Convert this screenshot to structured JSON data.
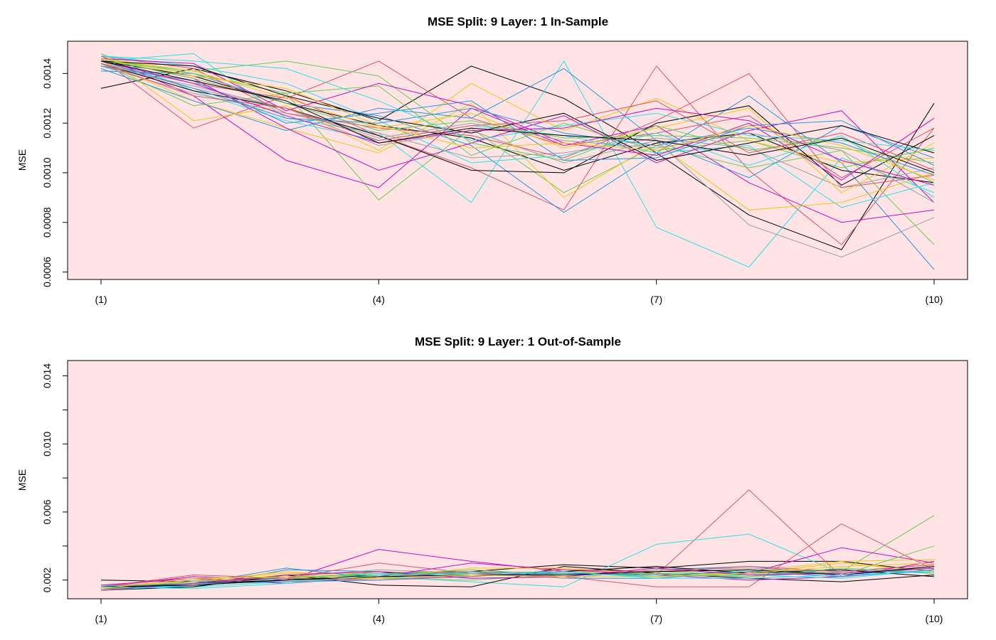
{
  "chart_data": [
    {
      "type": "line",
      "title": "MSE Split: 9 Layer: 1 In-Sample",
      "xlabel": "",
      "ylabel": "MSE",
      "x_tick_labels": [
        "(1)",
        "(4)",
        "(7)",
        "(10)"
      ],
      "y_ticks": [
        "0.0006",
        "0.0008",
        "0.0010",
        "0.0012",
        "0.0014"
      ],
      "ylim": [
        0.00057,
        0.00153
      ],
      "background_color": "#ffe3e5",
      "grid": false,
      "series": [
        {
          "color": "#000000",
          "values": [
            0.00134,
            0.00142,
            0.00133,
            0.00121,
            0.00143,
            0.0013,
            0.00108,
            0.00083,
            0.00069,
            0.00128
          ]
        },
        {
          "color": "#df536b",
          "values": [
            0.00146,
            0.00118,
            0.00131,
            0.00115,
            0.00102,
            0.00085,
            0.00143,
            0.00101,
            0.00071,
            0.00118
          ]
        },
        {
          "color": "#61d04f",
          "values": [
            0.00144,
            0.00127,
            0.00132,
            0.00089,
            0.00118,
            0.00092,
            0.00111,
            0.00102,
            0.00109,
            0.00071
          ]
        },
        {
          "color": "#2297e6",
          "values": [
            0.00141,
            0.0014,
            0.00128,
            0.00123,
            0.00111,
            0.00084,
            0.00108,
            0.00131,
            0.00104,
            0.00061
          ]
        },
        {
          "color": "#28e2e5",
          "values": [
            0.00145,
            0.00148,
            0.00122,
            0.00116,
            0.00088,
            0.00145,
            0.00078,
            0.00062,
            0.00106,
            0.00092
          ]
        },
        {
          "color": "#cd0bbc",
          "values": [
            0.00147,
            0.00131,
            0.00105,
            0.00094,
            0.00126,
            0.00111,
            0.00119,
            0.00096,
            0.0008,
            0.00085
          ]
        },
        {
          "color": "#f5c710",
          "values": [
            0.00145,
            0.00129,
            0.00118,
            0.00108,
            0.00128,
            0.0009,
            0.00112,
            0.00085,
            0.00088,
            0.001
          ]
        },
        {
          "color": "#9e9e9e",
          "values": [
            0.00143,
            0.00135,
            0.00126,
            0.00111,
            0.00117,
            0.00104,
            0.00113,
            0.00079,
            0.00066,
            0.00082
          ]
        },
        {
          "color": "#000000",
          "values": [
            0.00145,
            0.00139,
            0.00128,
            0.00119,
            0.00114,
            0.00101,
            0.00112,
            0.00116,
            0.00101,
            0.00096
          ]
        },
        {
          "color": "#df536b",
          "values": [
            0.00144,
            0.00136,
            0.0013,
            0.00145,
            0.00122,
            0.00111,
            0.00116,
            0.00123,
            0.00098,
            0.00118
          ]
        },
        {
          "color": "#61d04f",
          "values": [
            0.00146,
            0.0014,
            0.00132,
            0.00135,
            0.00107,
            0.0012,
            0.00109,
            0.00113,
            0.00102,
            0.0011
          ]
        },
        {
          "color": "#2297e6",
          "values": [
            0.00142,
            0.00129,
            0.00117,
            0.00126,
            0.00122,
            0.00142,
            0.00113,
            0.00098,
            0.00119,
            0.00106
          ]
        },
        {
          "color": "#28e2e5",
          "values": [
            0.00148,
            0.00133,
            0.00121,
            0.00113,
            0.00119,
            0.00115,
            0.00108,
            0.00111,
            0.00086,
            0.00096
          ]
        },
        {
          "color": "#cd0bbc",
          "values": [
            0.00146,
            0.00138,
            0.00118,
            0.00101,
            0.00112,
            0.00123,
            0.00104,
            0.00117,
            0.00125,
            0.00088
          ]
        },
        {
          "color": "#f5c710",
          "values": [
            0.00148,
            0.00121,
            0.00127,
            0.00109,
            0.00136,
            0.00117,
            0.0013,
            0.00113,
            0.00104,
            0.00106
          ]
        },
        {
          "color": "#9e9e9e",
          "values": [
            0.00143,
            0.00132,
            0.00124,
            0.00116,
            0.00106,
            0.00108,
            0.00114,
            0.0011,
            0.00094,
            0.00102
          ]
        },
        {
          "color": "#000000",
          "values": [
            0.00144,
            0.00133,
            0.00126,
            0.00115,
            0.00101,
            0.001,
            0.0012,
            0.00127,
            0.00095,
            0.00115
          ]
        },
        {
          "color": "#df536b",
          "values": [
            0.00147,
            0.00142,
            0.00124,
            0.00118,
            0.00115,
            0.00106,
            0.00121,
            0.0014,
            0.00094,
            0.00099
          ]
        },
        {
          "color": "#61d04f",
          "values": [
            0.00145,
            0.00141,
            0.00145,
            0.00139,
            0.00112,
            0.00105,
            0.00119,
            0.00109,
            0.00114,
            0.00096
          ]
        },
        {
          "color": "#2297e6",
          "values": [
            0.00143,
            0.00137,
            0.0012,
            0.00124,
            0.00129,
            0.00105,
            0.00106,
            0.00119,
            0.00121,
            0.00103
          ]
        },
        {
          "color": "#28e2e5",
          "values": [
            0.00147,
            0.00143,
            0.00136,
            0.00121,
            0.00104,
            0.00107,
            0.00116,
            0.00103,
            0.00115,
            0.0009
          ]
        },
        {
          "color": "#cd0bbc",
          "values": [
            0.00146,
            0.00144,
            0.00125,
            0.00136,
            0.00127,
            0.00112,
            0.00107,
            0.0012,
            0.00097,
            0.00122
          ]
        },
        {
          "color": "#f5c710",
          "values": [
            0.00146,
            0.00141,
            0.0013,
            0.00118,
            0.00124,
            0.0011,
            0.00118,
            0.00126,
            0.00092,
            0.00112
          ]
        },
        {
          "color": "#9e9e9e",
          "values": [
            0.00144,
            0.00134,
            0.00126,
            0.00114,
            0.0012,
            0.00113,
            0.0011,
            0.00116,
            0.00109,
            0.00088
          ]
        },
        {
          "color": "#000000",
          "values": [
            0.00145,
            0.00143,
            0.00131,
            0.00122,
            0.00116,
            0.00124,
            0.00105,
            0.00112,
            0.00119,
            0.00108
          ]
        },
        {
          "color": "#df536b",
          "values": [
            0.00144,
            0.00131,
            0.00126,
            0.00113,
            0.00119,
            0.00121,
            0.00129,
            0.00108,
            0.00116,
            0.00101
          ]
        },
        {
          "color": "#61d04f",
          "values": [
            0.00146,
            0.00138,
            0.00128,
            0.00117,
            0.00121,
            0.00114,
            0.00115,
            0.00114,
            0.0011,
            0.00104
          ]
        },
        {
          "color": "#2297e6",
          "values": [
            0.00145,
            0.00134,
            0.00122,
            0.0012,
            0.00126,
            0.00116,
            0.00111,
            0.00118,
            0.00112,
            0.00099
          ]
        },
        {
          "color": "#28e2e5",
          "values": [
            0.00147,
            0.00145,
            0.00142,
            0.00129,
            0.00113,
            0.00119,
            0.00124,
            0.00115,
            0.00113,
            0.00109
          ]
        },
        {
          "color": "#cd0bbc",
          "values": [
            0.00145,
            0.00136,
            0.00123,
            0.00112,
            0.00117,
            0.00118,
            0.00126,
            0.00121,
            0.00105,
            0.00095
          ]
        },
        {
          "color": "#f5c710",
          "values": [
            0.00146,
            0.00139,
            0.00134,
            0.00119,
            0.0011,
            0.00112,
            0.00109,
            0.00119,
            0.00111,
            0.00097
          ]
        },
        {
          "color": "#000000",
          "values": [
            0.00145,
            0.00137,
            0.00129,
            0.00112,
            0.00118,
            0.00115,
            0.00113,
            0.00107,
            0.00114,
            0.001
          ]
        }
      ]
    },
    {
      "type": "line",
      "title": "MSE Split: 9 Layer: 1 Out-of-Sample",
      "xlabel": "",
      "ylabel": "MSE",
      "x_tick_labels": [
        "(1)",
        "(4)",
        "(7)",
        "(10)"
      ],
      "y_ticks": [
        "0.002",
        "0.006",
        "0.010",
        "0.014"
      ],
      "ylim": [
        0.0009,
        0.0149
      ],
      "background_color": "#ffe3e5",
      "grid": false,
      "series": [
        {
          "color": "#000000",
          "values": [
            0.002,
            0.0019,
            0.0021,
            0.0024,
            0.0025,
            0.0029,
            0.0027,
            0.0031,
            0.0031,
            0.0025
          ]
        },
        {
          "color": "#df536b",
          "values": [
            0.0016,
            0.0018,
            0.0022,
            0.0023,
            0.0025,
            0.0024,
            0.0023,
            0.0073,
            0.0022,
            0.0026
          ]
        },
        {
          "color": "#61d04f",
          "values": [
            0.0015,
            0.0017,
            0.002,
            0.0021,
            0.002,
            0.0023,
            0.0025,
            0.0023,
            0.0025,
            0.0058
          ]
        },
        {
          "color": "#2297e6",
          "values": [
            0.0016,
            0.0016,
            0.0026,
            0.0025,
            0.0021,
            0.0022,
            0.0026,
            0.0028,
            0.0023,
            0.0027
          ]
        },
        {
          "color": "#28e2e5",
          "values": [
            0.0017,
            0.0016,
            0.0019,
            0.0022,
            0.0019,
            0.0016,
            0.0041,
            0.0047,
            0.0024,
            0.0028
          ]
        },
        {
          "color": "#cd0bbc",
          "values": [
            0.0016,
            0.0022,
            0.002,
            0.0038,
            0.0031,
            0.0025,
            0.0022,
            0.0024,
            0.0039,
            0.003
          ]
        },
        {
          "color": "#f5c710",
          "values": [
            0.0014,
            0.002,
            0.0024,
            0.0024,
            0.0022,
            0.0026,
            0.0021,
            0.0025,
            0.0031,
            0.0032
          ]
        },
        {
          "color": "#9e9e9e",
          "values": [
            0.0015,
            0.0019,
            0.0022,
            0.0026,
            0.0024,
            0.0023,
            0.0024,
            0.0022,
            0.0025,
            0.0029
          ]
        },
        {
          "color": "#df536b",
          "values": [
            0.0015,
            0.0018,
            0.0021,
            0.003,
            0.0024,
            0.0022,
            0.0016,
            0.0016,
            0.0053,
            0.0026
          ]
        },
        {
          "color": "#61d04f",
          "values": [
            0.0016,
            0.0017,
            0.002,
            0.0025,
            0.0023,
            0.0024,
            0.0022,
            0.0026,
            0.0023,
            0.004
          ]
        },
        {
          "color": "#000000",
          "values": [
            0.0014,
            0.0016,
            0.0023,
            0.0017,
            0.0016,
            0.0028,
            0.0024,
            0.0021,
            0.0019,
            0.0023
          ]
        },
        {
          "color": "#2297e6",
          "values": [
            0.0015,
            0.0018,
            0.0027,
            0.0021,
            0.0025,
            0.0021,
            0.0021,
            0.0025,
            0.0026,
            0.0024
          ]
        },
        {
          "color": "#cd0bbc",
          "values": [
            0.0017,
            0.0021,
            0.0018,
            0.0022,
            0.003,
            0.0026,
            0.0023,
            0.002,
            0.0022,
            0.0031
          ]
        },
        {
          "color": "#f5c710",
          "values": [
            0.0016,
            0.0019,
            0.0025,
            0.0021,
            0.0027,
            0.0027,
            0.0023,
            0.0024,
            0.003,
            0.0025
          ]
        },
        {
          "color": "#28e2e5",
          "values": [
            0.0014,
            0.0017,
            0.0021,
            0.0024,
            0.0022,
            0.0025,
            0.0022,
            0.0023,
            0.0021,
            0.0026
          ]
        },
        {
          "color": "#9e9e9e",
          "values": [
            0.0016,
            0.002,
            0.0019,
            0.0022,
            0.0025,
            0.0021,
            0.0026,
            0.0027,
            0.0024,
            0.0028
          ]
        },
        {
          "color": "#000000",
          "values": [
            0.0015,
            0.0018,
            0.002,
            0.0023,
            0.0024,
            0.0025,
            0.0028,
            0.0024,
            0.0026,
            0.0022
          ]
        },
        {
          "color": "#df536b",
          "values": [
            0.0016,
            0.0023,
            0.0021,
            0.002,
            0.0022,
            0.0026,
            0.0025,
            0.0028,
            0.0025,
            0.0029
          ]
        },
        {
          "color": "#61d04f",
          "values": [
            0.0015,
            0.0019,
            0.0022,
            0.0023,
            0.0026,
            0.0023,
            0.0024,
            0.0022,
            0.0027,
            0.0024
          ]
        },
        {
          "color": "#2297e6",
          "values": [
            0.0016,
            0.0018,
            0.0019,
            0.002,
            0.0023,
            0.0024,
            0.0023,
            0.0025,
            0.0022,
            0.0026
          ]
        },
        {
          "color": "#cd0bbc",
          "values": [
            0.0014,
            0.0018,
            0.0023,
            0.0025,
            0.0021,
            0.0022,
            0.0027,
            0.0023,
            0.0024,
            0.0027
          ]
        },
        {
          "color": "#000000",
          "values": [
            0.0016,
            0.0017,
            0.002,
            0.0022,
            0.0023,
            0.0023,
            0.0025,
            0.0026,
            0.0023,
            0.0028
          ]
        },
        {
          "color": "#f5c710",
          "values": [
            0.0015,
            0.0021,
            0.0022,
            0.0021,
            0.0023,
            0.0022,
            0.0022,
            0.0024,
            0.0028,
            0.003
          ]
        },
        {
          "color": "#28e2e5",
          "values": [
            0.0016,
            0.0015,
            0.0018,
            0.0023,
            0.0024,
            0.0025,
            0.0021,
            0.0021,
            0.0023,
            0.0025
          ]
        }
      ]
    }
  ]
}
